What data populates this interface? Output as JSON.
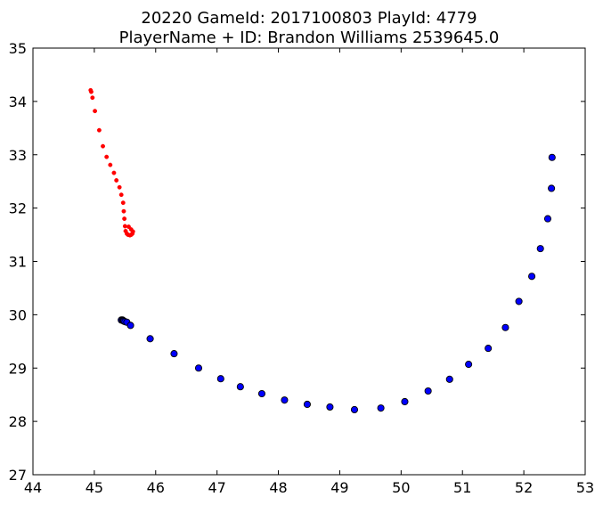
{
  "chart_data": {
    "type": "scatter",
    "title_line1": "20220 GameId: 2017100803 PlayId: 4779",
    "title_line2": "PlayerName + ID: Brandon Williams 2539645.0",
    "xlim": [
      44,
      53
    ],
    "ylim": [
      27,
      35
    ],
    "xticks": [
      "44",
      "45",
      "46",
      "47",
      "48",
      "49",
      "50",
      "51",
      "52",
      "53"
    ],
    "yticks": [
      "27",
      "28",
      "29",
      "30",
      "31",
      "32",
      "33",
      "34",
      "35"
    ],
    "grid": false,
    "series": [
      {
        "color": "#ff0000",
        "marker": "small-circle",
        "points": [
          [
            44.94,
            34.21
          ],
          [
            44.95,
            34.18
          ],
          [
            44.97,
            34.07
          ],
          [
            45.01,
            33.82
          ],
          [
            45.08,
            33.46
          ],
          [
            45.14,
            33.16
          ],
          [
            45.2,
            32.96
          ],
          [
            45.26,
            32.81
          ],
          [
            45.32,
            32.66
          ],
          [
            45.36,
            32.52
          ],
          [
            45.41,
            32.39
          ],
          [
            45.44,
            32.25
          ],
          [
            45.47,
            32.1
          ],
          [
            45.48,
            31.94
          ],
          [
            45.49,
            31.8
          ],
          [
            45.5,
            31.66
          ],
          [
            45.51,
            31.57
          ],
          [
            45.53,
            31.52
          ],
          [
            45.55,
            31.5
          ],
          [
            45.58,
            31.49
          ],
          [
            45.6,
            31.5
          ],
          [
            45.62,
            31.52
          ],
          [
            45.63,
            31.56
          ],
          [
            45.6,
            31.6
          ],
          [
            45.56,
            31.65
          ]
        ]
      },
      {
        "color": "#0000ff",
        "marker": "circle",
        "points": [
          [
            45.44,
            29.9
          ],
          [
            45.46,
            29.9
          ],
          [
            45.47,
            29.89
          ],
          [
            45.48,
            29.88
          ],
          [
            45.5,
            29.87
          ],
          [
            45.53,
            29.86
          ],
          [
            45.59,
            29.8
          ],
          [
            45.91,
            29.55
          ],
          [
            46.3,
            29.27
          ],
          [
            46.7,
            29.0
          ],
          [
            47.06,
            28.8
          ],
          [
            47.38,
            28.65
          ],
          [
            47.73,
            28.52
          ],
          [
            48.1,
            28.4
          ],
          [
            48.47,
            28.32
          ],
          [
            48.84,
            28.27
          ],
          [
            49.24,
            28.22
          ],
          [
            49.67,
            28.25
          ],
          [
            50.06,
            28.37
          ],
          [
            50.44,
            28.57
          ],
          [
            50.79,
            28.79
          ],
          [
            51.1,
            29.07
          ],
          [
            51.42,
            29.37
          ],
          [
            51.7,
            29.76
          ],
          [
            51.92,
            30.25
          ],
          [
            52.13,
            30.72
          ],
          [
            52.27,
            31.24
          ],
          [
            52.39,
            31.8
          ],
          [
            52.45,
            32.37
          ],
          [
            52.46,
            32.95
          ]
        ]
      }
    ]
  }
}
